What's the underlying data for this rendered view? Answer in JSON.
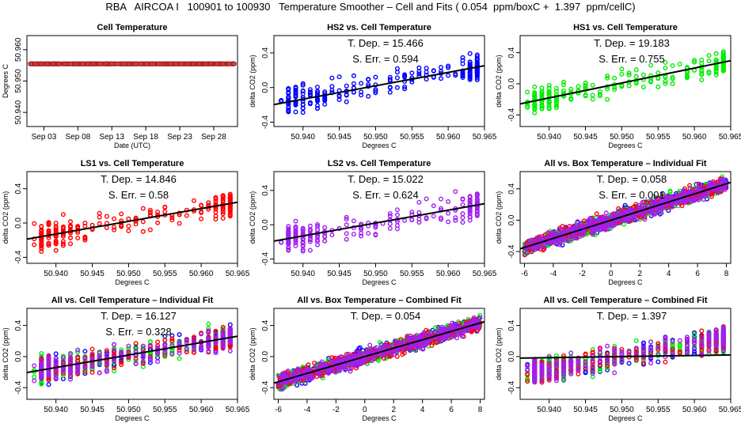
{
  "title": "RBA   AIRCOA I   100901 to 100930   Temperature Smoother – Cell and Fits ( 0.054  ppm/boxC +  1.397  ppm/cellC)",
  "colors": {
    "HS2": "#0000ff",
    "HS1": "#00ee00",
    "LS1": "#ff0000",
    "LS2": "#a020f0",
    "fit": "#000000",
    "cell": "#b22222"
  },
  "chart_data": [
    {
      "id": "cell-temp",
      "type": "scatter",
      "title": "Cell Temperature",
      "xlabel": "Date (UTC)",
      "ylabel": "Degrees C",
      "xticks": [
        "Sep 03",
        "Sep 08",
        "Sep 13",
        "Sep 18",
        "Sep 23",
        "Sep 28"
      ],
      "xtick_days": [
        3,
        8,
        13,
        18,
        23,
        28
      ],
      "xlim": [
        0.5,
        31.5
      ],
      "yticks": [
        "50.940",
        "50.950",
        "50.960"
      ],
      "ytick_values": [
        50.94,
        50.95,
        50.96
      ],
      "ylim": [
        50.9355,
        50.9645
      ],
      "series": [
        {
          "name": "Cell",
          "color_key": "cell",
          "x_range": [
            1,
            31
          ],
          "y_range": [
            50.937,
            50.964
          ]
        }
      ]
    },
    {
      "id": "hs2-vs-cell",
      "type": "scatter",
      "title": "HS2 vs. Cell Temperature",
      "xlabel": "Degrees C",
      "ylabel": "delta CO2 (ppm)",
      "xticks": [
        "50.940",
        "50.945",
        "50.950",
        "50.955",
        "50.960",
        "50.965"
      ],
      "xtick_values": [
        50.94,
        50.945,
        50.95,
        50.955,
        50.96,
        50.965
      ],
      "xlim": [
        50.936,
        50.965
      ],
      "yticks": [
        "-0.4",
        "0.0",
        "0.4"
      ],
      "ytick_values": [
        -0.4,
        0.0,
        0.4
      ],
      "ylim": [
        -0.45,
        0.6
      ],
      "annotations": [
        "T. Dep. =  15.466",
        "S. Err. =  0.594"
      ],
      "fit": {
        "slope": 15.466,
        "x0": 50.95,
        "y0": 0.02
      },
      "series": [
        {
          "name": "HS2",
          "color_key": "HS2"
        }
      ]
    },
    {
      "id": "hs1-vs-cell",
      "type": "scatter",
      "title": "HS1 vs. Cell Temperature",
      "xlabel": "Degrees C",
      "ylabel": "delta CO2 (ppm)",
      "xticks": [
        "50.940",
        "50.945",
        "50.950",
        "50.955",
        "50.960",
        "50.965"
      ],
      "xtick_values": [
        50.94,
        50.945,
        50.95,
        50.955,
        50.96,
        50.965
      ],
      "xlim": [
        50.936,
        50.965
      ],
      "yticks": [
        "-0.4",
        "0.0",
        "0.4"
      ],
      "ytick_values": [
        -0.4,
        0.0,
        0.4
      ],
      "ylim": [
        -0.55,
        0.62
      ],
      "annotations": [
        "T. Dep. =  19.183",
        "S. Err. =  0.755"
      ],
      "fit": {
        "slope": 19.183,
        "x0": 50.95,
        "y0": 0.01
      },
      "series": [
        {
          "name": "HS1",
          "color_key": "HS1"
        }
      ]
    },
    {
      "id": "ls1-vs-cell",
      "type": "scatter",
      "title": "LS1 vs. Cell Temperature",
      "xlabel": "Degrees C",
      "ylabel": "delta CO2 (ppm)",
      "xticks": [
        "50.940",
        "50.945",
        "50.950",
        "50.955",
        "50.960",
        "50.965"
      ],
      "xtick_values": [
        50.94,
        50.945,
        50.95,
        50.955,
        50.96,
        50.965
      ],
      "xlim": [
        50.936,
        50.965
      ],
      "yticks": [
        "-0.4",
        "0.0",
        "0.4"
      ],
      "ytick_values": [
        -0.4,
        0.0,
        0.4
      ],
      "ylim": [
        -0.47,
        0.6
      ],
      "annotations": [
        "T. Dep. =  14.846",
        "S. Err. =  0.58"
      ],
      "fit": {
        "slope": 14.846,
        "x0": 50.95,
        "y0": 0.02
      },
      "series": [
        {
          "name": "LS1",
          "color_key": "LS1"
        }
      ]
    },
    {
      "id": "ls2-vs-cell",
      "type": "scatter",
      "title": "LS2 vs. Cell Temperature",
      "xlabel": "Degrees C",
      "ylabel": "delta CO2 (ppm)",
      "xticks": [
        "50.940",
        "50.945",
        "50.950",
        "50.955",
        "50.960",
        "50.965"
      ],
      "xtick_values": [
        50.94,
        50.945,
        50.95,
        50.955,
        50.96,
        50.965
      ],
      "xlim": [
        50.936,
        50.965
      ],
      "yticks": [
        "-0.4",
        "0.0",
        "0.4"
      ],
      "ytick_values": [
        -0.4,
        0.0,
        0.4
      ],
      "ylim": [
        -0.45,
        0.62
      ],
      "annotations": [
        "T. Dep. =  15.022",
        "S. Err. =  0.624"
      ],
      "fit": {
        "slope": 15.022,
        "x0": 50.95,
        "y0": 0.02
      },
      "series": [
        {
          "name": "LS2",
          "color_key": "LS2"
        }
      ]
    },
    {
      "id": "all-vs-box-individual",
      "type": "scatter",
      "title": "All vs. Box Temperature – Individual Fit",
      "xlabel": "Degrees C",
      "ylabel": "delta CO2 (ppm)",
      "xticks": [
        "-6",
        "-4",
        "-2",
        "0",
        "2",
        "4",
        "6",
        "8"
      ],
      "xtick_values": [
        -6,
        -4,
        -2,
        0,
        2,
        4,
        6,
        8
      ],
      "xlim": [
        -6.3,
        8.3
      ],
      "yticks": [
        "-0.4",
        "0.0",
        "0.4"
      ],
      "ytick_values": [
        -0.4,
        0.0,
        0.4
      ],
      "ylim": [
        -0.55,
        0.62
      ],
      "annotations": [
        "T. Dep. =  0.058",
        "S. Err. =  0.001"
      ],
      "fit": {
        "slope": 0.058,
        "x0": 0,
        "y0": 0.0
      },
      "series": [
        {
          "name": "HS2",
          "color_key": "HS2"
        },
        {
          "name": "HS1",
          "color_key": "HS1"
        },
        {
          "name": "LS1",
          "color_key": "LS1"
        },
        {
          "name": "LS2",
          "color_key": "LS2"
        }
      ]
    },
    {
      "id": "all-vs-cell-individual",
      "type": "scatter",
      "title": "All vs. Cell Temperature – Individual Fit",
      "xlabel": "Degrees C",
      "ylabel": "delta CO2 (ppm)",
      "xticks": [
        "50.940",
        "50.945",
        "50.950",
        "50.955",
        "50.960",
        "50.965"
      ],
      "xtick_values": [
        50.94,
        50.945,
        50.95,
        50.955,
        50.96,
        50.965
      ],
      "xlim": [
        50.936,
        50.965
      ],
      "yticks": [
        "-0.4",
        "0.0",
        "0.4"
      ],
      "ytick_values": [
        -0.4,
        0.0,
        0.4
      ],
      "ylim": [
        -0.55,
        0.62
      ],
      "annotations": [
        "T. Dep. =  16.127",
        "S. Err. =  0.328"
      ],
      "fit": {
        "slope": 16.127,
        "x0": 50.95,
        "y0": 0.02
      },
      "series": [
        {
          "name": "HS2",
          "color_key": "HS2"
        },
        {
          "name": "HS1",
          "color_key": "HS1"
        },
        {
          "name": "LS1",
          "color_key": "LS1"
        },
        {
          "name": "LS2",
          "color_key": "LS2"
        }
      ]
    },
    {
      "id": "all-vs-box-combined",
      "type": "scatter",
      "title": "All vs. Box Temperature – Combined Fit",
      "xlabel": "Degrees C",
      "ylabel": "delta CO2 (ppm)",
      "xticks": [
        "-6",
        "-4",
        "-2",
        "0",
        "2",
        "4",
        "6",
        "8"
      ],
      "xtick_values": [
        -6,
        -4,
        -2,
        0,
        2,
        4,
        6,
        8
      ],
      "xlim": [
        -6.3,
        8.3
      ],
      "yticks": [
        "-0.4",
        "0.0",
        "0.4"
      ],
      "ytick_values": [
        -0.4,
        0.0,
        0.4
      ],
      "ylim": [
        -0.55,
        0.62
      ],
      "annotations": [
        "T. Dep. =  0.054"
      ],
      "fit": {
        "slope": 0.054,
        "x0": 0,
        "y0": 0.0
      },
      "series": [
        {
          "name": "HS2",
          "color_key": "HS2"
        },
        {
          "name": "HS1",
          "color_key": "HS1"
        },
        {
          "name": "LS1",
          "color_key": "LS1"
        },
        {
          "name": "LS2",
          "color_key": "LS2"
        }
      ]
    },
    {
      "id": "all-vs-cell-combined",
      "type": "scatter",
      "title": "All vs. Cell Temperature – Combined Fit",
      "xlabel": "Degrees C",
      "ylabel": "delta CO2 (ppm)",
      "xticks": [
        "50.940",
        "50.945",
        "50.950",
        "50.955",
        "50.960",
        "50.965"
      ],
      "xtick_values": [
        50.94,
        50.945,
        50.95,
        50.955,
        50.96,
        50.965
      ],
      "xlim": [
        50.936,
        50.965
      ],
      "yticks": [
        "-0.4",
        "0.0",
        "0.4"
      ],
      "ytick_values": [
        -0.4,
        0.0,
        0.4
      ],
      "ylim": [
        -0.55,
        0.62
      ],
      "annotations": [
        "T. Dep. =  1.397"
      ],
      "fit": {
        "slope": 1.397,
        "x0": 50.95,
        "y0": 0.0
      },
      "series": [
        {
          "name": "HS2",
          "color_key": "HS2"
        },
        {
          "name": "HS1",
          "color_key": "HS1"
        },
        {
          "name": "LS1",
          "color_key": "LS1"
        },
        {
          "name": "LS2",
          "color_key": "LS2"
        }
      ]
    }
  ]
}
